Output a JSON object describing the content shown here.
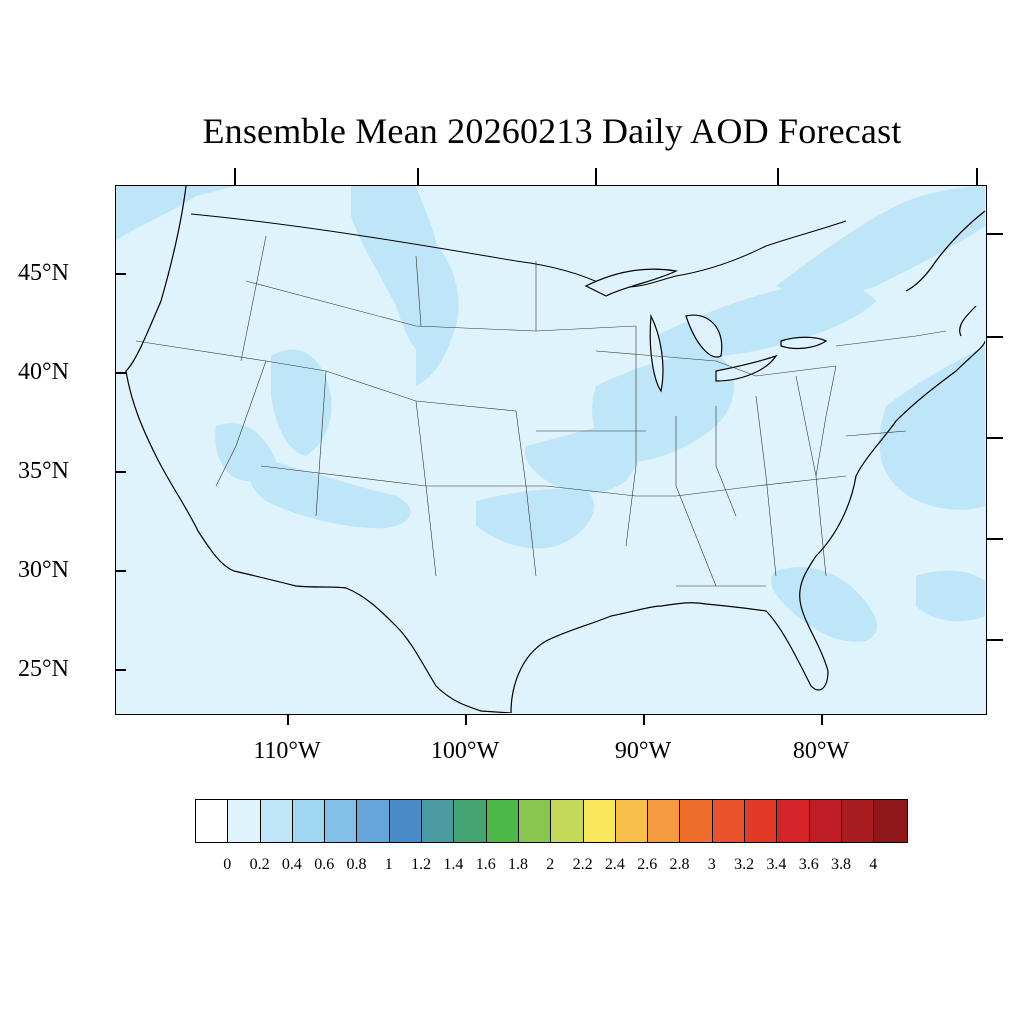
{
  "title": "Ensemble Mean 20260213 Daily AOD Forecast",
  "map": {
    "lat_labels": [
      "45°N",
      "40°N",
      "35°N",
      "30°N",
      "25°N"
    ],
    "lon_labels": [
      "110°W",
      "100°W",
      "90°W",
      "80°W"
    ],
    "colors": {
      "background_aod": "#def3fb",
      "light_plume": "#bee6f8",
      "coast_line": "#000000"
    }
  },
  "colorbar": {
    "colors": [
      "#ffffff",
      "#def3fb",
      "#bee6f8",
      "#9fd7f3",
      "#83bfe6",
      "#67a6da",
      "#4a8bc8",
      "#4a9ba0",
      "#45a572",
      "#4cb848",
      "#88c650",
      "#c5d95a",
      "#f9e85c",
      "#f8c04a",
      "#f59a3e",
      "#f06e2c",
      "#e9522a",
      "#e13b27",
      "#d42329",
      "#c01e26",
      "#a81c22",
      "#8f161a"
    ],
    "labels": [
      "0",
      "0.2",
      "0.4",
      "0.6",
      "0.8",
      "1",
      "1.2",
      "1.4",
      "1.6",
      "1.8",
      "2",
      "2.2",
      "2.4",
      "2.6",
      "2.8",
      "3",
      "3.2",
      "3.4",
      "3.6",
      "3.8",
      "4"
    ]
  }
}
